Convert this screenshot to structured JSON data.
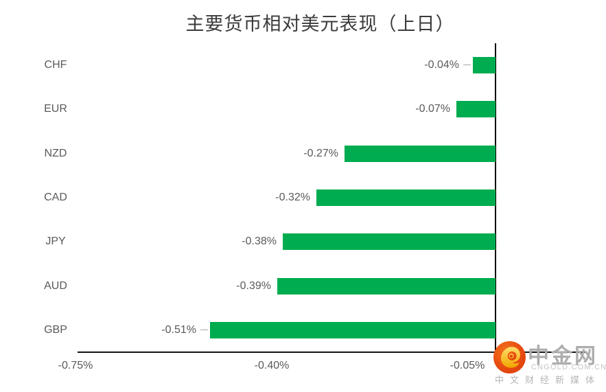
{
  "chart_data": {
    "type": "bar",
    "orientation": "horizontal",
    "title": "主要货币相对美元表现（上日）",
    "categories": [
      "CHF",
      "EUR",
      "NZD",
      "CAD",
      "JPY",
      "AUD",
      "GBP"
    ],
    "values": [
      -0.04,
      -0.07,
      -0.27,
      -0.32,
      -0.38,
      -0.39,
      -0.51
    ],
    "value_labels": [
      "-0.04%",
      "-0.07%",
      "-0.27%",
      "-0.32%",
      "-0.38%",
      "-0.39%",
      "-0.51%"
    ],
    "unit": "percent",
    "xlabel": "",
    "ylabel": "",
    "xlim": [
      -0.75,
      0.16
    ],
    "x_ticks": [
      "-0.75%",
      "-0.40%",
      "-0.05%"
    ],
    "x_tick_values": [
      -0.75,
      -0.4,
      -0.05
    ],
    "grid": false,
    "legend": false,
    "bar_color": "#00AC50",
    "label_color": "#595959",
    "axis_color": "#000000",
    "leader_line_color": "#a6a6a6",
    "leader_lines": [
      true,
      false,
      false,
      false,
      false,
      false,
      true
    ]
  },
  "watermark": {
    "brand": "中金网",
    "domain": "CNGOLD.COM.CN",
    "tagline": "中文财经新媒体",
    "circle_color_inner": "#f4731c",
    "circle_color_outer": "#dd3b0d",
    "swirl_color_top": "#ffdf6b",
    "swirl_color_bottom": "#f2a500"
  }
}
